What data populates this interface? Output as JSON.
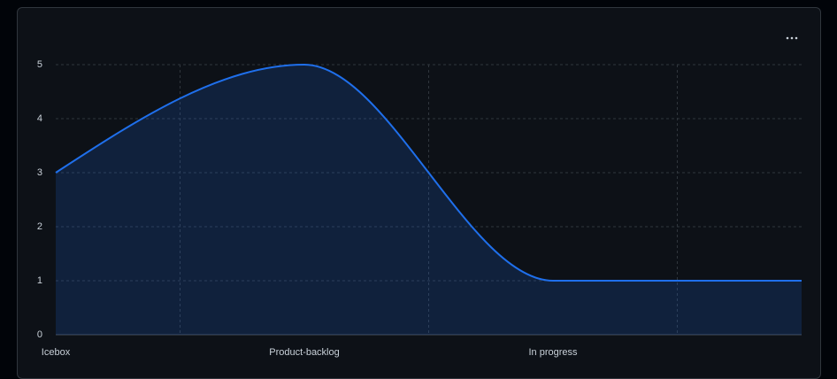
{
  "chart_data": {
    "type": "area",
    "categories": [
      "Icebox",
      "Product-backlog",
      "In progress",
      null
    ],
    "series": [
      {
        "color": "#1f6feb",
        "values": [
          3,
          5,
          1,
          1
        ]
      }
    ],
    "ylim": [
      0,
      5
    ],
    "yticks": [
      0,
      1,
      2,
      3,
      4,
      5
    ],
    "grid": true
  }
}
